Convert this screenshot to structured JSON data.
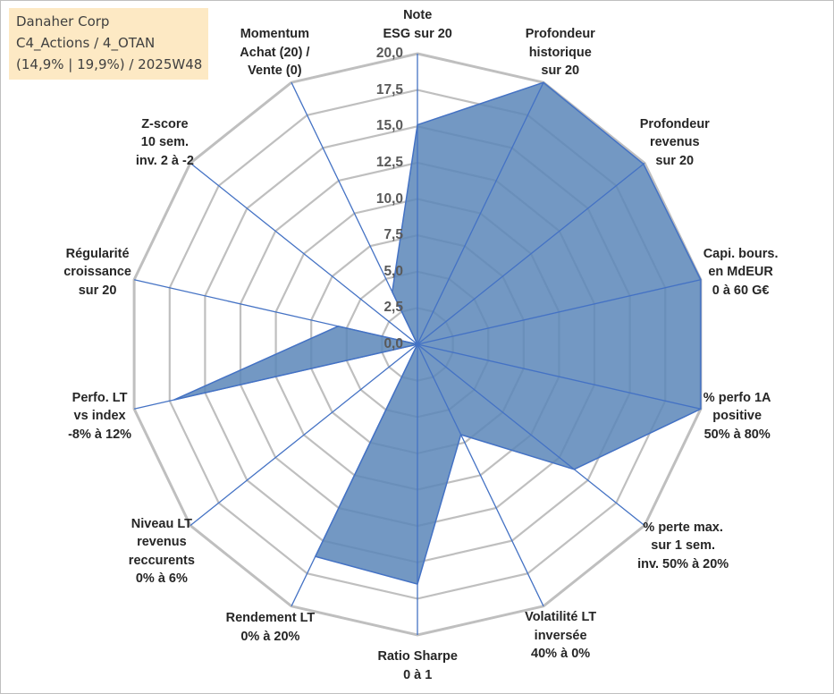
{
  "info_box": {
    "line1": "Danaher Corp",
    "line2": "C4_Actions / 4_OTAN",
    "line3": "(14,9% | 19,9%) / 2025W48",
    "background": "#fde9c4"
  },
  "colors": {
    "fill": "#5b86b8",
    "line": "#4472c4",
    "grid": "#bfbfbf",
    "axis": "#4472c4"
  },
  "chart_data": {
    "type": "radar",
    "rmin": 0,
    "rmax": 20,
    "tick_step": 2.5,
    "tick_labels": [
      "0,0",
      "2,5",
      "5,0",
      "7,5",
      "10,0",
      "12,5",
      "15,0",
      "17,5",
      "20,0"
    ],
    "axes": [
      {
        "lines": [
          "Note",
          "ESG sur 20"
        ],
        "value": 15.1
      },
      {
        "lines": [
          "Profondeur",
          "historique",
          "sur 20"
        ],
        "value": 20.0
      },
      {
        "lines": [
          "Profondeur",
          "revenus",
          "sur 20"
        ],
        "value": 19.9
      },
      {
        "lines": [
          "Capi. bours.",
          "en MdEUR",
          "0 à 60 G€"
        ],
        "value": 20.0
      },
      {
        "lines": [
          "% perfo 1A",
          "positive",
          "50% à 80%"
        ],
        "value": 20.0
      },
      {
        "lines": [
          "% perte max.",
          "sur 1 sem.",
          "inv. 50% à 20%"
        ],
        "value": 13.8
      },
      {
        "lines": [
          "Volatilité LT",
          "inversée",
          "40% à 0%"
        ],
        "value": 6.9
      },
      {
        "lines": [
          "Ratio Sharpe",
          "0 à 1"
        ],
        "value": 16.5
      },
      {
        "lines": [
          "Rendement LT",
          "0% à 20%"
        ],
        "value": 16.2
      },
      {
        "lines": [
          "Niveau LT",
          "revenus",
          "reccurents",
          "0% à 6%"
        ],
        "value": 0.0
      },
      {
        "lines": [
          "Perfo. LT",
          "vs index",
          "-8% à 12%"
        ],
        "value": 17.2
      },
      {
        "lines": [
          "Régularité",
          "croissance",
          "sur 20"
        ],
        "value": 5.6
      },
      {
        "lines": [
          "Z-score",
          "10 sem.",
          "inv. 2 à -2"
        ],
        "value": 0.0
      },
      {
        "lines": [
          "Momentum",
          "Achat (20) /",
          "Vente (0)"
        ],
        "value": 4.0
      }
    ]
  }
}
